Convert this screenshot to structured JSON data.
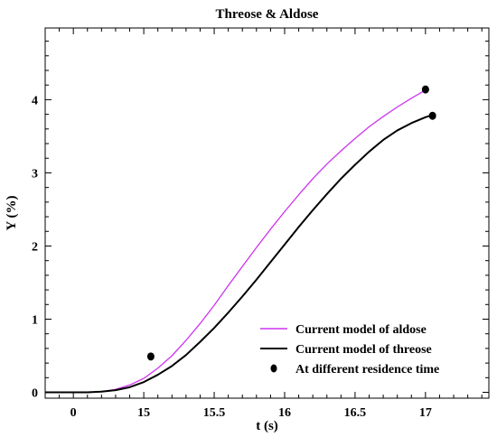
{
  "chart_data": {
    "type": "line",
    "title": "Threose & Aldose",
    "xlabel": "t (s)",
    "ylabel": "Y (%)",
    "x_tick_labels": [
      "0",
      "15",
      "15.5",
      "16",
      "16.5",
      "17"
    ],
    "y_ticks": [
      0,
      1,
      2,
      3,
      4
    ],
    "xlim": [
      14.3,
      17.45
    ],
    "ylim": [
      -0.08,
      4.98
    ],
    "x_axis_note": "axis break: first tick labelled 0 drawn at position of 14.5",
    "grid": false,
    "legend_position": "bottom-right",
    "series": [
      {
        "name": "Current model of aldose",
        "style": "line",
        "color": "#cc33ee",
        "x": [
          14.3,
          14.5,
          14.6,
          14.7,
          14.8,
          14.9,
          15.0,
          15.1,
          15.2,
          15.3,
          15.4,
          15.5,
          15.6,
          15.7,
          15.8,
          15.9,
          16.0,
          16.1,
          16.2,
          16.3,
          16.4,
          16.5,
          16.6,
          16.7,
          16.8,
          16.9,
          17.0
        ],
        "y": [
          0.0,
          0.0,
          0.0,
          0.01,
          0.04,
          0.1,
          0.19,
          0.33,
          0.5,
          0.71,
          0.94,
          1.19,
          1.46,
          1.72,
          1.98,
          2.23,
          2.47,
          2.7,
          2.92,
          3.12,
          3.3,
          3.47,
          3.63,
          3.77,
          3.9,
          4.02,
          4.13
        ]
      },
      {
        "name": "Current model of threose",
        "style": "line",
        "color": "#000000",
        "x": [
          14.3,
          14.5,
          14.6,
          14.7,
          14.8,
          14.9,
          15.0,
          15.1,
          15.2,
          15.3,
          15.4,
          15.5,
          15.6,
          15.7,
          15.8,
          15.9,
          16.0,
          16.1,
          16.2,
          16.3,
          16.4,
          16.5,
          16.6,
          16.7,
          16.8,
          16.9,
          17.0,
          17.05
        ],
        "y": [
          0.0,
          0.0,
          0.0,
          0.01,
          0.03,
          0.07,
          0.14,
          0.24,
          0.36,
          0.51,
          0.69,
          0.88,
          1.09,
          1.31,
          1.54,
          1.78,
          2.02,
          2.26,
          2.49,
          2.71,
          2.92,
          3.11,
          3.29,
          3.45,
          3.58,
          3.68,
          3.76,
          3.79
        ]
      },
      {
        "name": "At different residence time",
        "style": "scatter",
        "color": "#000000",
        "x": [
          15.05,
          17.0,
          17.05
        ],
        "y": [
          0.49,
          4.14,
          3.78
        ]
      }
    ]
  }
}
